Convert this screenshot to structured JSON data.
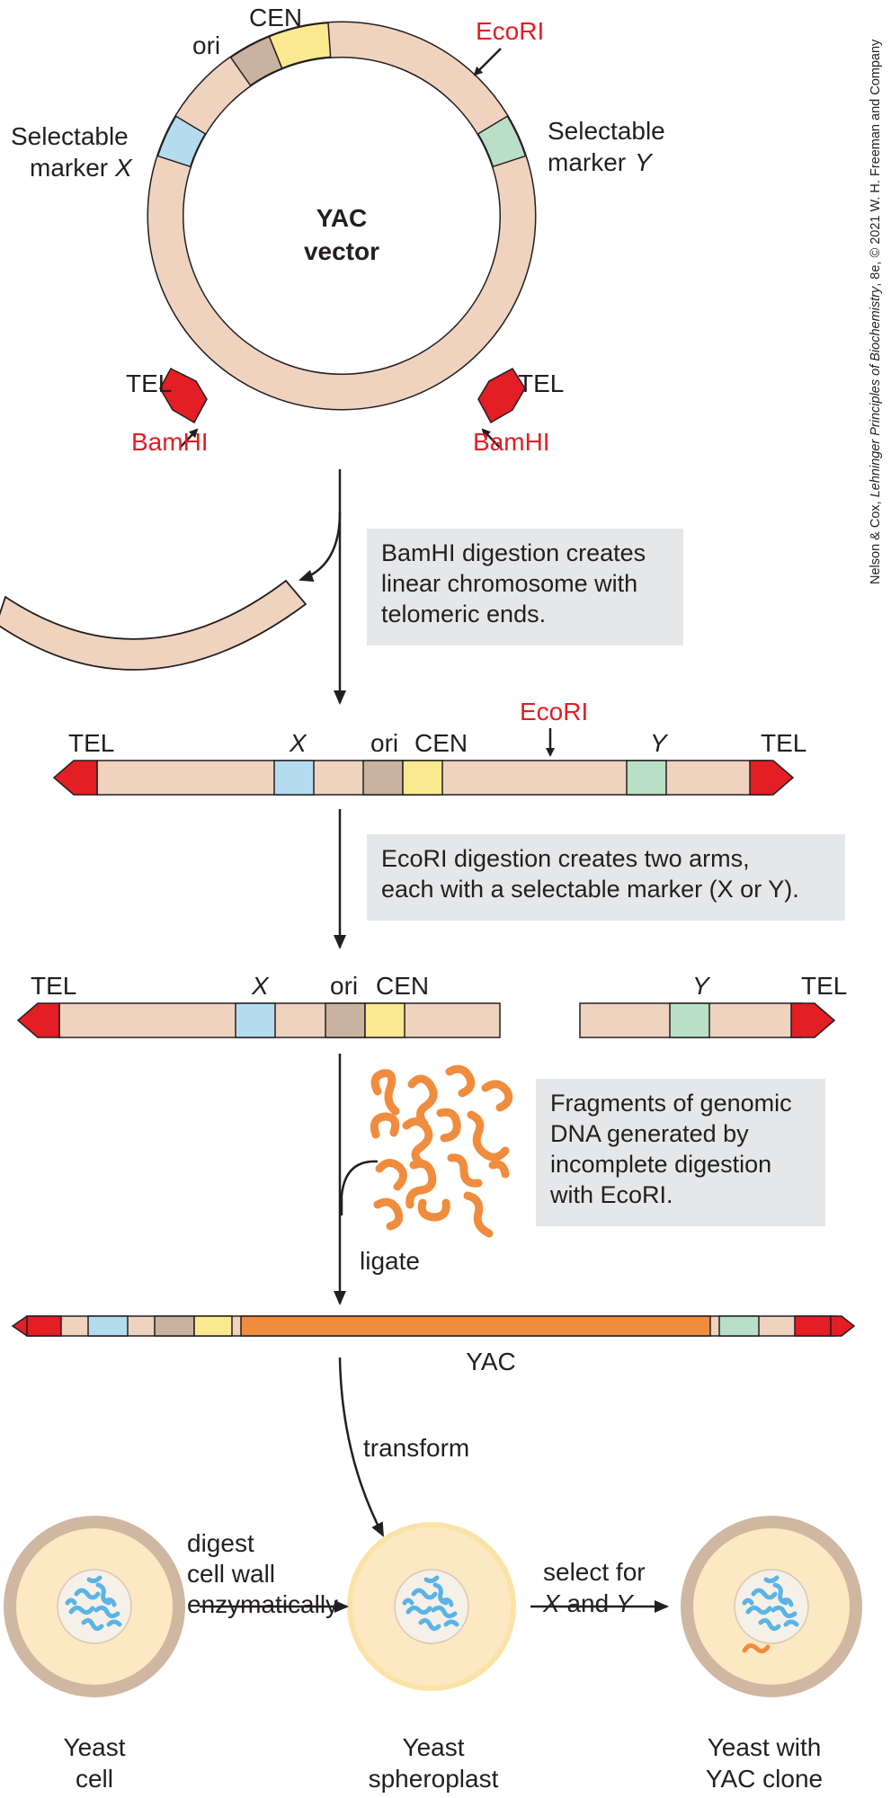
{
  "vector": {
    "title_line1": "YAC",
    "title_line2": "vector",
    "labels": {
      "ori": "ori",
      "cen": "CEN",
      "ecori": "EcoRI",
      "marker_x_line1": "Selectable",
      "marker_x_line2": "marker",
      "marker_x_var": "X",
      "marker_y_line1": "Selectable",
      "marker_y_line2": "marker",
      "marker_y_var": "Y",
      "tel_left": "TEL",
      "tel_right": "TEL",
      "bamhi_left": "BamHI",
      "bamhi_right": "BamHI"
    }
  },
  "steps": {
    "bamhi_caption": [
      "BamHI digestion creates",
      "linear chromosome with",
      "telomeric ends."
    ],
    "ecori_caption": [
      "EcoRI digestion creates two arms,",
      "each with a selectable marker (X or Y)."
    ],
    "fragments_caption": [
      "Fragments of genomic",
      "DNA generated by",
      "incomplete digestion",
      "with EcoRI."
    ],
    "ligate": "ligate",
    "transform": "transform"
  },
  "linear": {
    "tel_left": "TEL",
    "x": "X",
    "ori": "ori",
    "cen": "CEN",
    "ecori": "EcoRI",
    "y": "Y",
    "tel_right": "TEL"
  },
  "arms": {
    "tel_left": "TEL",
    "x": "X",
    "ori": "ori",
    "cen": "CEN",
    "y": "Y",
    "tel_right": "TEL"
  },
  "yac_label": "YAC",
  "cells": {
    "digest_label": [
      "digest",
      "cell wall",
      "enzymatically"
    ],
    "select_label_line1": "select for",
    "select_label_x": "X",
    "select_label_and": "and",
    "select_label_y": "Y",
    "cell1": [
      "Yeast",
      "cell"
    ],
    "cell2": [
      "Yeast",
      "spheroplast"
    ],
    "cell3": [
      "Yeast with",
      "YAC clone"
    ]
  },
  "credit": {
    "authors": "Nelson & Cox, ",
    "book": "Lehninger Principles of Biochemistry",
    "rest": ", 8e, © 2021 W. H. Freeman and Company"
  },
  "colors": {
    "vector_body": "#efd3bf",
    "tel": "#e31e24",
    "marker_x": "#b5dcee",
    "marker_y": "#b9dfc6",
    "ori": "#c9b29f",
    "cen": "#fbe98f",
    "genomic": "#f08c3e",
    "cell_wall": "#cfb7a2",
    "cytoplasm": "#fce8c2",
    "spheroplast_edge": "#fbe3a8",
    "nucleus": "#f5f0e8",
    "chromatin": "#5ab4e5",
    "box": "#e6e7e8"
  }
}
